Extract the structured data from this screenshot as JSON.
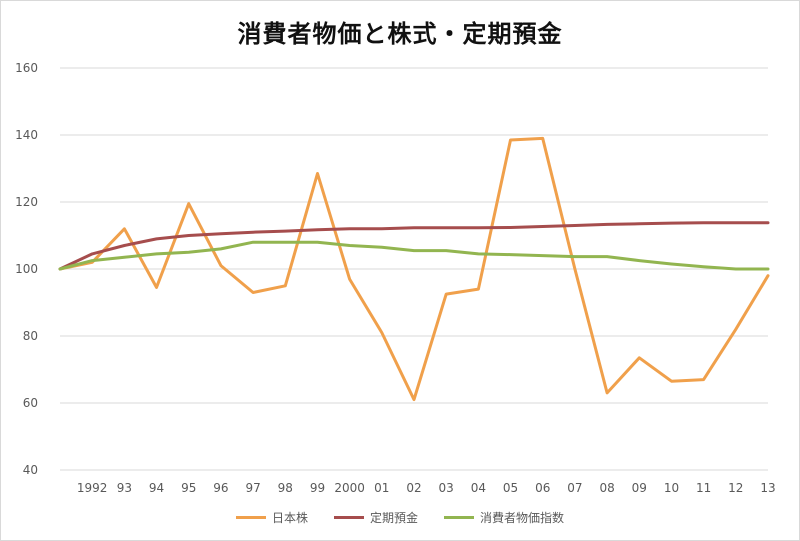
{
  "chart_data": {
    "type": "line",
    "title": "消費者物価と株式・定期預金",
    "xlabel": "",
    "ylabel": "",
    "ylim": [
      40,
      160
    ],
    "yticks": [
      40,
      60,
      80,
      100,
      120,
      140,
      160
    ],
    "grid": "horizontal",
    "legend": "bottom",
    "categories": [
      "",
      "1992",
      "93",
      "94",
      "95",
      "96",
      "97",
      "98",
      "99",
      "2000",
      "01",
      "02",
      "03",
      "04",
      "05",
      "06",
      "07",
      "08",
      "09",
      "10",
      "11",
      "12",
      "13"
    ],
    "series": [
      {
        "name": "日本株",
        "color": "#f0a04b",
        "values": [
          100,
          102,
          112,
          94.5,
          119.5,
          101,
          93,
          95,
          128.5,
          97,
          81,
          61,
          92.5,
          94,
          138.5,
          139,
          100,
          63,
          73.5,
          66.5,
          67,
          82,
          98
        ]
      },
      {
        "name": "定期預金",
        "color": "#a64d4d",
        "values": [
          100,
          104.5,
          107,
          109,
          110,
          110.5,
          111,
          111.3,
          111.7,
          112,
          112,
          112.3,
          112.3,
          112.3,
          112.4,
          112.7,
          113,
          113.3,
          113.5,
          113.7,
          113.8,
          113.8,
          113.8
        ]
      },
      {
        "name": "消費者物価指数",
        "color": "#92b550",
        "values": [
          100,
          102.5,
          103.5,
          104.5,
          105,
          106,
          108,
          108,
          108,
          107,
          106.5,
          105.5,
          105.5,
          104.5,
          104.3,
          104,
          103.7,
          103.7,
          102.5,
          101.5,
          100.7,
          100,
          100
        ]
      }
    ]
  }
}
